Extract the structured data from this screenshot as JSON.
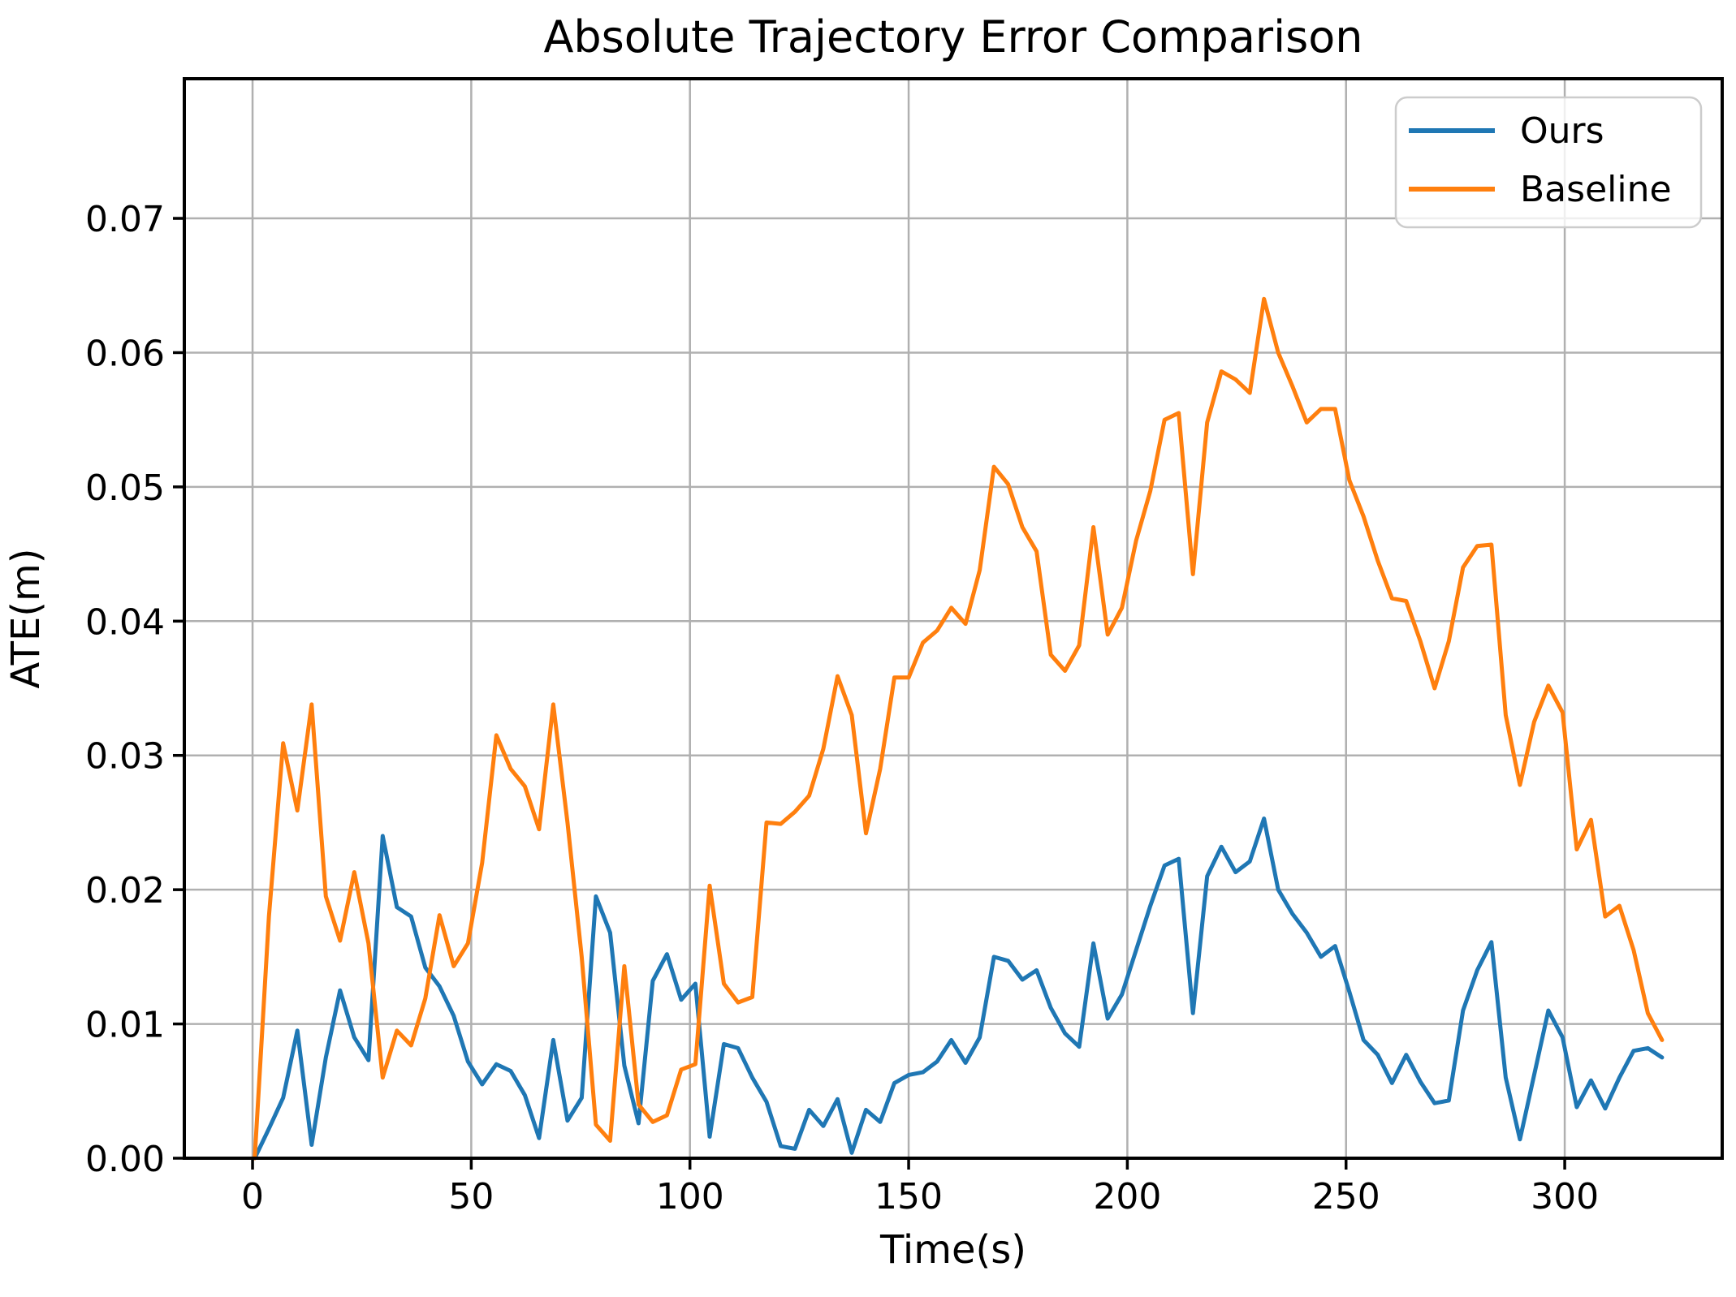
{
  "chart_data": {
    "type": "line",
    "title": "Absolute Trajectory Error Comparison",
    "xlabel": "Time(s)",
    "ylabel": "ATE(m)",
    "xlim": [
      -15.6,
      336
    ],
    "ylim": [
      0,
      0.0804
    ],
    "x_ticks": [
      0,
      50,
      100,
      150,
      200,
      250,
      300
    ],
    "y_ticks": [
      0.0,
      0.01,
      0.02,
      0.03,
      0.04,
      0.05,
      0.06,
      0.07
    ],
    "grid": true,
    "grid_color": "#b0b0b0",
    "legend_position": "upper right",
    "x": [
      0.5,
      3.75,
      7,
      10.25,
      13.5,
      16.75,
      20,
      23.25,
      26.5,
      29.75,
      33,
      36.25,
      39.5,
      42.75,
      46,
      49.25,
      52.5,
      55.75,
      59,
      62.25,
      65.5,
      68.75,
      72,
      75.25,
      78.5,
      81.75,
      85,
      88.25,
      91.5,
      94.75,
      98,
      101.25,
      104.5,
      107.75,
      111,
      114.25,
      117.5,
      120.75,
      124,
      127.25,
      130.5,
      133.75,
      137,
      140.25,
      143.5,
      146.75,
      150,
      153.25,
      156.5,
      159.75,
      163,
      166.25,
      169.5,
      172.75,
      176,
      179.25,
      182.5,
      185.75,
      189,
      192.25,
      195.5,
      198.75,
      202,
      205.25,
      208.5,
      211.75,
      215,
      218.25,
      221.5,
      224.75,
      228,
      231.25,
      234.5,
      237.75,
      241,
      244.25,
      247.5,
      250.75,
      254,
      257.25,
      260.5,
      263.75,
      267,
      270.25,
      273.5,
      276.75,
      280,
      283.25,
      286.5,
      289.75,
      293,
      296.25,
      299.5,
      302.75,
      306,
      309.25,
      312.5,
      315.75,
      319,
      322.25
    ],
    "series": [
      {
        "name": "Ours",
        "color": "#1f77b4",
        "values": [
          0.0,
          0.0022,
          0.0045,
          0.0095,
          0.001,
          0.0075,
          0.0125,
          0.009,
          0.0073,
          0.024,
          0.0187,
          0.018,
          0.0142,
          0.0128,
          0.0106,
          0.0072,
          0.0055,
          0.007,
          0.0065,
          0.0047,
          0.0015,
          0.0088,
          0.0028,
          0.0045,
          0.0195,
          0.0168,
          0.0069,
          0.0026,
          0.0132,
          0.0152,
          0.0118,
          0.013,
          0.0016,
          0.0085,
          0.0082,
          0.006,
          0.0042,
          0.0009,
          0.0007,
          0.0036,
          0.0024,
          0.0044,
          0.0004,
          0.0036,
          0.0027,
          0.0056,
          0.0062,
          0.0064,
          0.0072,
          0.0088,
          0.0071,
          0.009,
          0.015,
          0.0147,
          0.0133,
          0.014,
          0.0112,
          0.0093,
          0.0083,
          0.016,
          0.0104,
          0.0122,
          0.0155,
          0.0188,
          0.0218,
          0.0223,
          0.0108,
          0.021,
          0.0232,
          0.0213,
          0.0221,
          0.0253,
          0.02,
          0.0182,
          0.0168,
          0.015,
          0.0158,
          0.0124,
          0.0088,
          0.0077,
          0.0056,
          0.0077,
          0.0057,
          0.0041,
          0.0043,
          0.011,
          0.014,
          0.0161,
          0.006,
          0.0014,
          0.0062,
          0.011,
          0.009,
          0.0038,
          0.0058,
          0.0037,
          0.006,
          0.008,
          0.0082,
          0.0075
        ]
      },
      {
        "name": "Baseline",
        "color": "#ff7f0e",
        "values": [
          0.0,
          0.018,
          0.0309,
          0.0259,
          0.0338,
          0.0195,
          0.0162,
          0.0213,
          0.016,
          0.006,
          0.0095,
          0.0084,
          0.0119,
          0.0181,
          0.0143,
          0.016,
          0.022,
          0.0315,
          0.029,
          0.0277,
          0.0245,
          0.0338,
          0.025,
          0.015,
          0.0025,
          0.0013,
          0.0143,
          0.004,
          0.0027,
          0.0032,
          0.0066,
          0.007,
          0.0203,
          0.013,
          0.0116,
          0.012,
          0.025,
          0.0249,
          0.0258,
          0.027,
          0.0305,
          0.0359,
          0.033,
          0.0242,
          0.029,
          0.0358,
          0.0358,
          0.0384,
          0.0393,
          0.041,
          0.0398,
          0.0438,
          0.0515,
          0.0502,
          0.047,
          0.0452,
          0.0375,
          0.0363,
          0.0382,
          0.047,
          0.039,
          0.041,
          0.046,
          0.0497,
          0.055,
          0.0555,
          0.0435,
          0.0548,
          0.0586,
          0.058,
          0.057,
          0.064,
          0.06,
          0.0575,
          0.0548,
          0.0558,
          0.0558,
          0.0505,
          0.0478,
          0.0445,
          0.0417,
          0.0415,
          0.0385,
          0.035,
          0.0385,
          0.044,
          0.0456,
          0.0457,
          0.033,
          0.0278,
          0.0325,
          0.0352,
          0.0332,
          0.023,
          0.0252,
          0.018,
          0.0188,
          0.0155,
          0.0108,
          0.0088
        ]
      }
    ]
  }
}
